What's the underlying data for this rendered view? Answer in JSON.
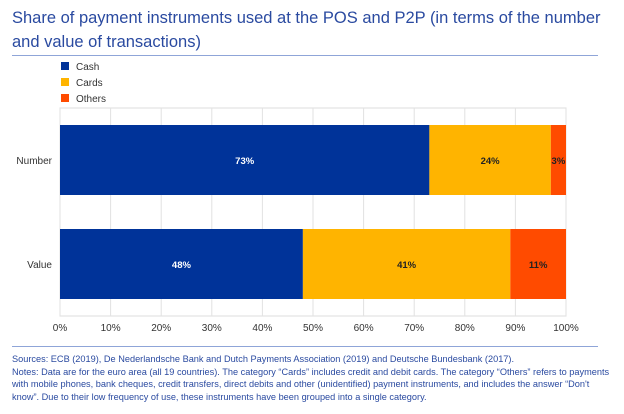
{
  "chart_data": {
    "type": "bar",
    "orientation": "horizontal",
    "stacked": true,
    "title": "Share of payment instruments used at the POS and P2P (in terms of the number and value of transactions)",
    "categories": [
      "Number",
      "Value"
    ],
    "series": [
      {
        "name": "Cash",
        "color": "#003399",
        "values": [
          73,
          48
        ],
        "labels": [
          "73%",
          "48%"
        ]
      },
      {
        "name": "Cards",
        "color": "#FFB400",
        "values": [
          24,
          41
        ],
        "labels": [
          "24%",
          "41%"
        ]
      },
      {
        "name": "Others",
        "color": "#FF4B00",
        "values": [
          3,
          11
        ],
        "labels": [
          "3%",
          "11%"
        ]
      }
    ],
    "xlim": [
      0,
      100
    ],
    "xticks": [
      "0%",
      "10%",
      "20%",
      "30%",
      "40%",
      "50%",
      "60%",
      "70%",
      "80%",
      "90%",
      "100%"
    ],
    "grid": true,
    "legend": "top-left"
  },
  "notes": {
    "sources": "Sources: ECB (2019), De Nederlandsche Bank and Dutch Payments Association (2019) and Deutsche Bundesbank (2017).",
    "notes": "Notes: Data are for the euro area (all 19 countries). The category “Cards” includes credit and debit cards. The category “Others” refers to payments with mobile phones, bank cheques, credit transfers, direct debits and other (unidentified) payment instruments, and includes the answer “Don't know”. Due to their low frequency of use, these instruments have been grouped into a single category."
  }
}
